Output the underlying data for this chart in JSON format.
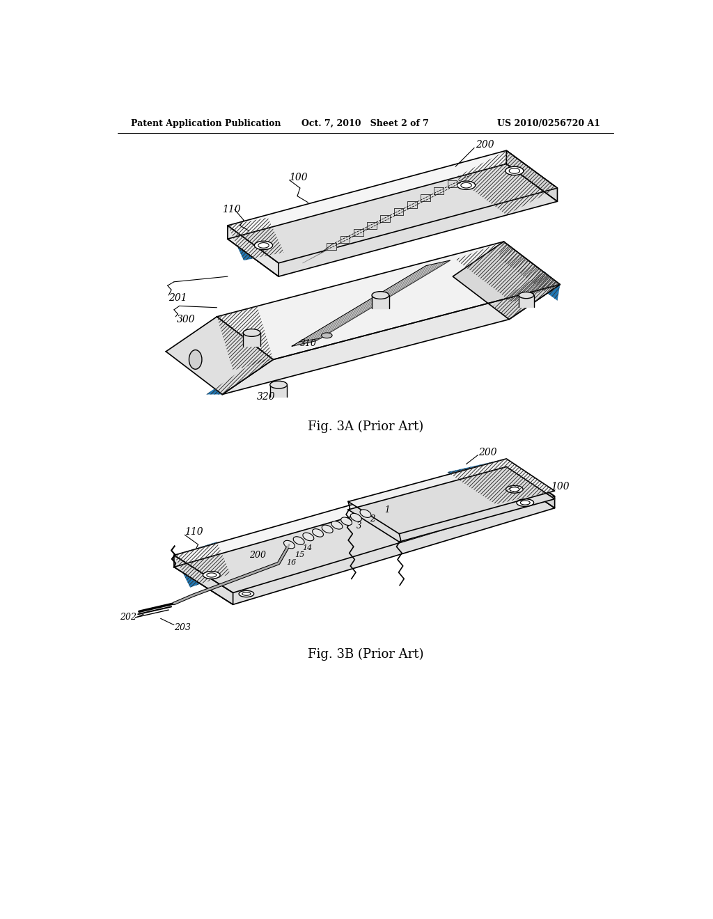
{
  "header_left": "Patent Application Publication",
  "header_mid": "Oct. 7, 2010   Sheet 2 of 7",
  "header_right": "US 2010/0256720 A1",
  "fig3a_caption": "Fig. 3A (Prior Art)",
  "fig3b_caption": "Fig. 3B (Prior Art)",
  "bg": "#ffffff"
}
